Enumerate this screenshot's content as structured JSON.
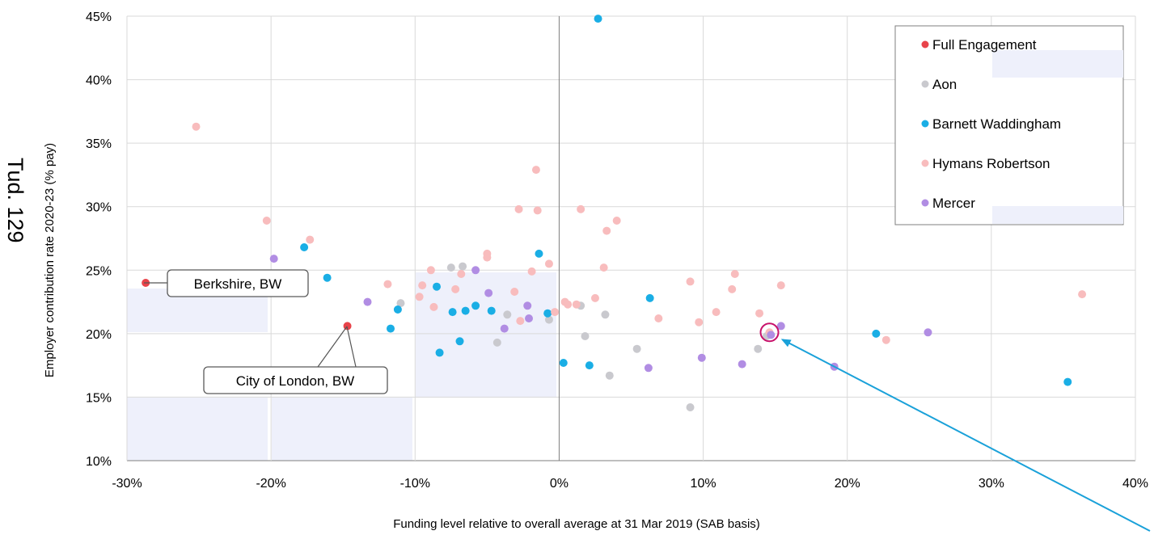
{
  "chart_data": {
    "type": "scatter",
    "xlabel": "Funding level relative to overall average at 31 Mar 2019 (SAB basis)",
    "ylabel": "Employer contribution rate 2020-23 (% pay)",
    "xlim": [
      -30,
      40
    ],
    "ylim": [
      10,
      45
    ],
    "x_ticks": [
      "-30%",
      "-20%",
      "-10%",
      "0%",
      "10%",
      "20%",
      "30%",
      "40%"
    ],
    "y_ticks": [
      "10%",
      "15%",
      "20%",
      "25%",
      "30%",
      "35%",
      "40%",
      "45%"
    ],
    "grid": true,
    "legend_position": "top-right",
    "series": [
      {
        "name": "Full Engagement",
        "color": "#e8434a",
        "points": [
          [
            -28.7,
            24.0
          ],
          [
            -14.7,
            20.6
          ]
        ]
      },
      {
        "name": "Aon",
        "color": "#c9c9ce",
        "points": [
          [
            -7.5,
            25.2
          ],
          [
            -11.0,
            22.4
          ],
          [
            -6.7,
            25.3
          ],
          [
            -3.6,
            21.5
          ],
          [
            -4.3,
            19.3
          ],
          [
            -0.7,
            21.1
          ],
          [
            1.5,
            22.2
          ],
          [
            1.8,
            19.8
          ],
          [
            3.2,
            21.5
          ],
          [
            3.5,
            16.7
          ],
          [
            5.4,
            18.8
          ],
          [
            9.1,
            14.2
          ],
          [
            13.8,
            18.8
          ],
          [
            14.4,
            19.8
          ]
        ]
      },
      {
        "name": "Barnett Waddingham",
        "color": "#1aaee5",
        "points": [
          [
            2.7,
            44.8
          ],
          [
            -17.7,
            26.8
          ],
          [
            -16.1,
            24.4
          ],
          [
            -11.2,
            21.9
          ],
          [
            -11.7,
            20.4
          ],
          [
            -8.5,
            23.7
          ],
          [
            -8.3,
            18.5
          ],
          [
            -7.4,
            21.7
          ],
          [
            -6.9,
            19.4
          ],
          [
            -6.5,
            21.8
          ],
          [
            -5.8,
            22.2
          ],
          [
            -4.7,
            21.8
          ],
          [
            -1.4,
            26.3
          ],
          [
            -0.8,
            21.6
          ],
          [
            0.3,
            17.7
          ],
          [
            2.1,
            17.5
          ],
          [
            6.3,
            22.8
          ],
          [
            22.0,
            20.0
          ],
          [
            35.3,
            16.2
          ]
        ]
      },
      {
        "name": "Hymans Robertson",
        "color": "#f8bcbd",
        "points": [
          [
            -25.2,
            36.3
          ],
          [
            -20.3,
            28.9
          ],
          [
            -17.3,
            27.4
          ],
          [
            -11.9,
            23.9
          ],
          [
            -9.7,
            22.9
          ],
          [
            -9.5,
            23.8
          ],
          [
            -8.9,
            25.0
          ],
          [
            -8.7,
            22.1
          ],
          [
            -7.2,
            23.5
          ],
          [
            -6.8,
            24.7
          ],
          [
            -5.0,
            26.3
          ],
          [
            -5.0,
            26.0
          ],
          [
            -3.1,
            23.3
          ],
          [
            -2.8,
            29.8
          ],
          [
            -2.7,
            21.0
          ],
          [
            -1.9,
            24.9
          ],
          [
            -1.6,
            32.9
          ],
          [
            -1.5,
            29.7
          ],
          [
            -0.7,
            25.5
          ],
          [
            -0.3,
            21.7
          ],
          [
            0.4,
            22.5
          ],
          [
            0.6,
            22.3
          ],
          [
            1.2,
            22.3
          ],
          [
            1.5,
            29.8
          ],
          [
            2.5,
            22.8
          ],
          [
            3.1,
            25.2
          ],
          [
            3.3,
            28.1
          ],
          [
            4.0,
            28.9
          ],
          [
            6.9,
            21.2
          ],
          [
            9.1,
            24.1
          ],
          [
            9.7,
            20.9
          ],
          [
            10.9,
            21.7
          ],
          [
            12.0,
            23.5
          ],
          [
            12.2,
            24.7
          ],
          [
            13.9,
            21.6
          ],
          [
            14.6,
            20.1
          ],
          [
            15.4,
            23.8
          ],
          [
            22.7,
            19.5
          ],
          [
            36.3,
            23.1
          ]
        ]
      },
      {
        "name": "Mercer",
        "color": "#b18de3",
        "points": [
          [
            -19.8,
            25.9
          ],
          [
            -13.3,
            22.5
          ],
          [
            -5.8,
            25.0
          ],
          [
            -4.9,
            23.2
          ],
          [
            -3.8,
            20.4
          ],
          [
            -2.2,
            22.2
          ],
          [
            -2.1,
            21.2
          ],
          [
            6.2,
            17.3
          ],
          [
            9.9,
            18.1
          ],
          [
            12.7,
            17.6
          ],
          [
            14.7,
            19.9
          ],
          [
            15.4,
            20.6
          ],
          [
            19.1,
            17.4
          ],
          [
            25.6,
            20.1
          ]
        ]
      }
    ],
    "annotations": [
      {
        "text": "Berkshire, BW",
        "point": [
          -28.7,
          24.0
        ]
      },
      {
        "text": "City of London, BW",
        "point": [
          -14.7,
          20.6
        ]
      }
    ],
    "highlight": {
      "point": [
        14.6,
        20.1
      ],
      "circle_color": "#c8106a",
      "arrow_color": "#1aa1d9"
    }
  },
  "side_label": "Tud. 129",
  "colors": {
    "grid": "#d9d9d9",
    "zero_line": "#7f7f7f",
    "shaded": "#eef0fb"
  }
}
